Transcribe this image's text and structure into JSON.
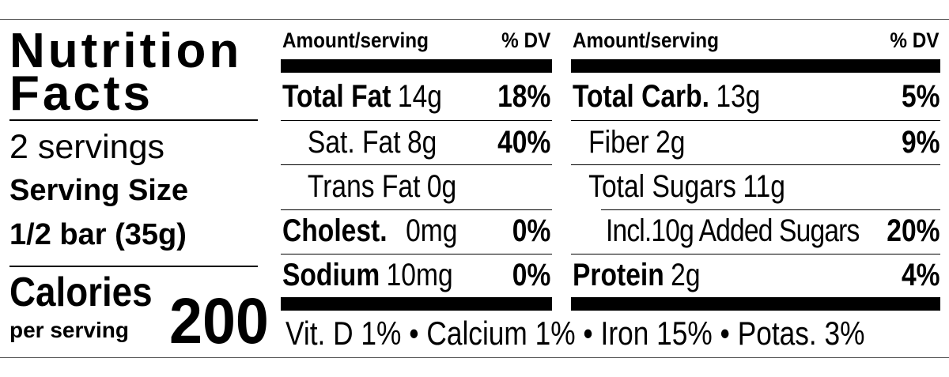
{
  "title": {
    "line1": "Nutrition",
    "line2": "Facts"
  },
  "servings": "2 servings",
  "serving_size": {
    "label": "Serving Size",
    "value": "1/2 bar (35g)"
  },
  "calories": {
    "label": "Calories",
    "sublabel": "per serving",
    "value": "200"
  },
  "left_table": {
    "header": {
      "amount": "Amount/serving",
      "dv": "% DV"
    },
    "rows": [
      {
        "name": "Total Fat",
        "amount": "14g",
        "dv": "18%"
      },
      {
        "name": "Sat. Fat",
        "amount": "8g",
        "dv": "40%"
      },
      {
        "name": "Trans Fat",
        "amount": "0g"
      },
      {
        "name": "Cholest.",
        "amount": "0mg",
        "dv": "0%"
      },
      {
        "name": "Sodium",
        "amount": "10mg",
        "dv": "0%"
      }
    ]
  },
  "right_table": {
    "header": {
      "amount": "Amount/serving",
      "dv": "% DV"
    },
    "rows": [
      {
        "name": "Total Carb.",
        "amount": "13g",
        "dv": "5%"
      },
      {
        "name": "Fiber",
        "amount": "2g",
        "dv": "9%"
      },
      {
        "name": "Total Sugars",
        "amount": "11g"
      },
      {
        "name": "Incl.10g Added Sugars",
        "dv": "20%"
      },
      {
        "name": "Protein",
        "amount": "2g",
        "dv": "4%"
      }
    ]
  },
  "footer": "Vit. D 1% • Calcium 1% • Iron 15% • Potas. 3%"
}
